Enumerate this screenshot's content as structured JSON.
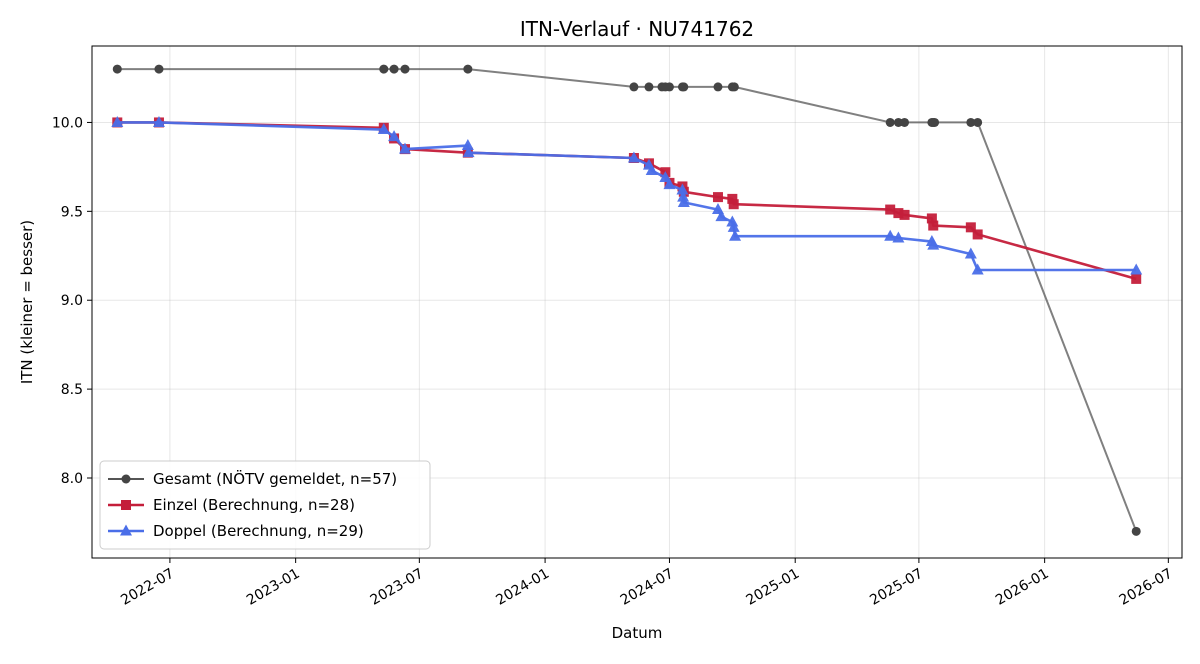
{
  "chart_data": {
    "type": "line",
    "title": "ITN-Verlauf · NU741762",
    "xlabel": "Datum",
    "ylabel": "ITN  (kleiner = besser)",
    "xlim": [
      "2022-03-09",
      "2026-07-21"
    ],
    "ylim": [
      7.55,
      10.43
    ],
    "x_ticks": [
      "2022-07",
      "2023-01",
      "2023-07",
      "2024-01",
      "2024-07",
      "2025-01",
      "2025-07",
      "2026-01",
      "2026-07"
    ],
    "y_ticks": [
      8.0,
      8.5,
      9.0,
      9.5,
      10.0
    ],
    "grid": true,
    "legend_position": "lower-left",
    "series": [
      {
        "name": "Gesamt (NÖTV gemeldet, n=57)",
        "color": "#555555",
        "marker": "circle",
        "points": [
          [
            "2022-04-15",
            10.3
          ],
          [
            "2022-06-15",
            10.3
          ],
          [
            "2023-05-10",
            10.3
          ],
          [
            "2023-05-25",
            10.3
          ],
          [
            "2023-06-10",
            10.3
          ],
          [
            "2023-09-10",
            10.3
          ],
          [
            "2024-05-10",
            10.2
          ],
          [
            "2024-06-01",
            10.2
          ],
          [
            "2024-06-20",
            10.2
          ],
          [
            "2024-06-25",
            10.2
          ],
          [
            "2024-07-01",
            10.2
          ],
          [
            "2024-07-20",
            10.2
          ],
          [
            "2024-07-22",
            10.2
          ],
          [
            "2024-09-10",
            10.2
          ],
          [
            "2024-10-01",
            10.2
          ],
          [
            "2024-10-04",
            10.2
          ],
          [
            "2025-05-20",
            10.0
          ],
          [
            "2025-06-01",
            10.0
          ],
          [
            "2025-06-10",
            10.0
          ],
          [
            "2025-07-20",
            10.0
          ],
          [
            "2025-07-22",
            10.0
          ],
          [
            "2025-07-24",
            10.0
          ],
          [
            "2025-09-15",
            10.0
          ],
          [
            "2025-09-25",
            10.0
          ],
          [
            "2026-05-15",
            7.7
          ]
        ]
      },
      {
        "name": "Einzel (Berechnung, n=28)",
        "color": "#c41e3a",
        "marker": "square",
        "points": [
          [
            "2022-04-15",
            10.0
          ],
          [
            "2022-06-15",
            10.0
          ],
          [
            "2023-05-10",
            9.97
          ],
          [
            "2023-05-25",
            9.91
          ],
          [
            "2023-06-10",
            9.85
          ],
          [
            "2023-09-10",
            9.83
          ],
          [
            "2024-05-10",
            9.8
          ],
          [
            "2024-06-01",
            9.77
          ],
          [
            "2024-06-25",
            9.72
          ],
          [
            "2024-07-01",
            9.66
          ],
          [
            "2024-07-20",
            9.64
          ],
          [
            "2024-07-22",
            9.61
          ],
          [
            "2024-09-10",
            9.58
          ],
          [
            "2024-10-01",
            9.57
          ],
          [
            "2024-10-03",
            9.54
          ],
          [
            "2025-05-20",
            9.51
          ],
          [
            "2025-06-01",
            9.49
          ],
          [
            "2025-06-10",
            9.48
          ],
          [
            "2025-07-20",
            9.46
          ],
          [
            "2025-07-22",
            9.42
          ],
          [
            "2025-09-15",
            9.41
          ],
          [
            "2025-09-25",
            9.37
          ],
          [
            "2026-05-15",
            9.12
          ]
        ]
      },
      {
        "name": "Doppel (Berechnung, n=29)",
        "color": "#4a6ee8",
        "marker": "triangle",
        "points": [
          [
            "2022-04-15",
            10.0
          ],
          [
            "2022-06-15",
            10.0
          ],
          [
            "2023-05-10",
            9.96
          ],
          [
            "2023-05-25",
            9.92
          ],
          [
            "2023-06-10",
            9.85
          ],
          [
            "2023-09-10",
            9.87
          ],
          [
            "2023-09-11",
            9.83
          ],
          [
            "2024-05-10",
            9.8
          ],
          [
            "2024-06-01",
            9.76
          ],
          [
            "2024-06-05",
            9.73
          ],
          [
            "2024-06-25",
            9.69
          ],
          [
            "2024-07-01",
            9.65
          ],
          [
            "2024-07-20",
            9.62
          ],
          [
            "2024-07-21",
            9.58
          ],
          [
            "2024-07-22",
            9.55
          ],
          [
            "2024-09-10",
            9.51
          ],
          [
            "2024-09-15",
            9.47
          ],
          [
            "2024-10-01",
            9.44
          ],
          [
            "2024-10-03",
            9.41
          ],
          [
            "2024-10-05",
            9.36
          ],
          [
            "2025-05-20",
            9.36
          ],
          [
            "2025-06-01",
            9.35
          ],
          [
            "2025-07-20",
            9.33
          ],
          [
            "2025-07-22",
            9.31
          ],
          [
            "2025-09-15",
            9.26
          ],
          [
            "2025-09-25",
            9.17
          ],
          [
            "2026-05-15",
            9.17
          ]
        ]
      }
    ]
  }
}
